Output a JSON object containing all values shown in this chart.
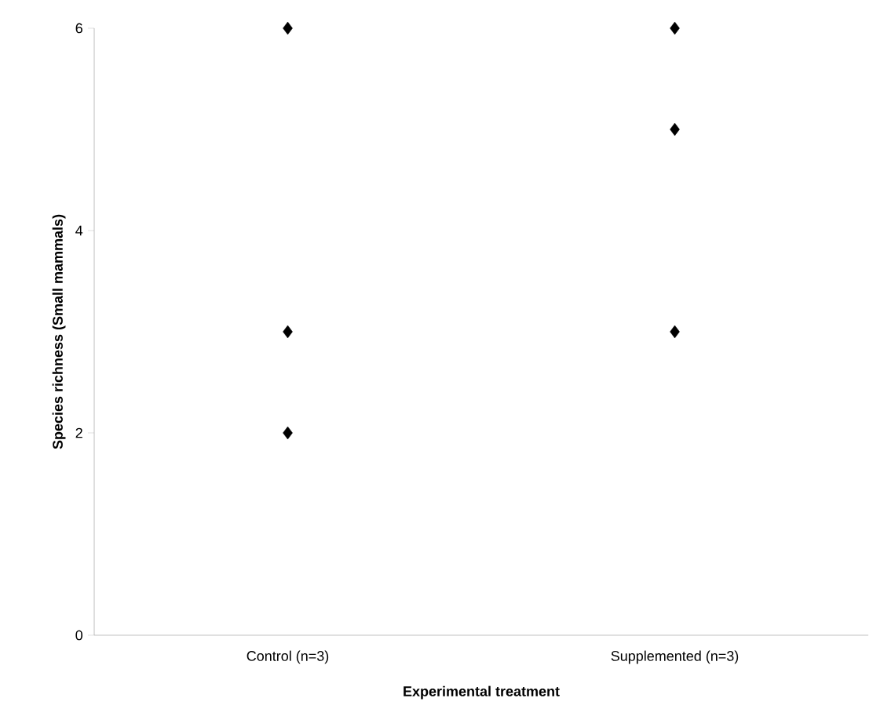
{
  "chart_data": {
    "type": "scatter",
    "xlabel": "Experimental treatment",
    "ylabel": "Species richness (Small mammals)",
    "categories": [
      "Control (n=3)",
      "Supplemented (n=3)"
    ],
    "series": [
      {
        "color": "#000000",
        "values": [
          6,
          6
        ]
      },
      {
        "color": "#000000",
        "values": [
          3,
          5
        ]
      },
      {
        "color": "#000000",
        "values": [
          2,
          3
        ]
      }
    ],
    "ylim": [
      0,
      6
    ],
    "yticks": [
      0,
      2,
      4,
      6
    ],
    "marker": "diamond"
  }
}
